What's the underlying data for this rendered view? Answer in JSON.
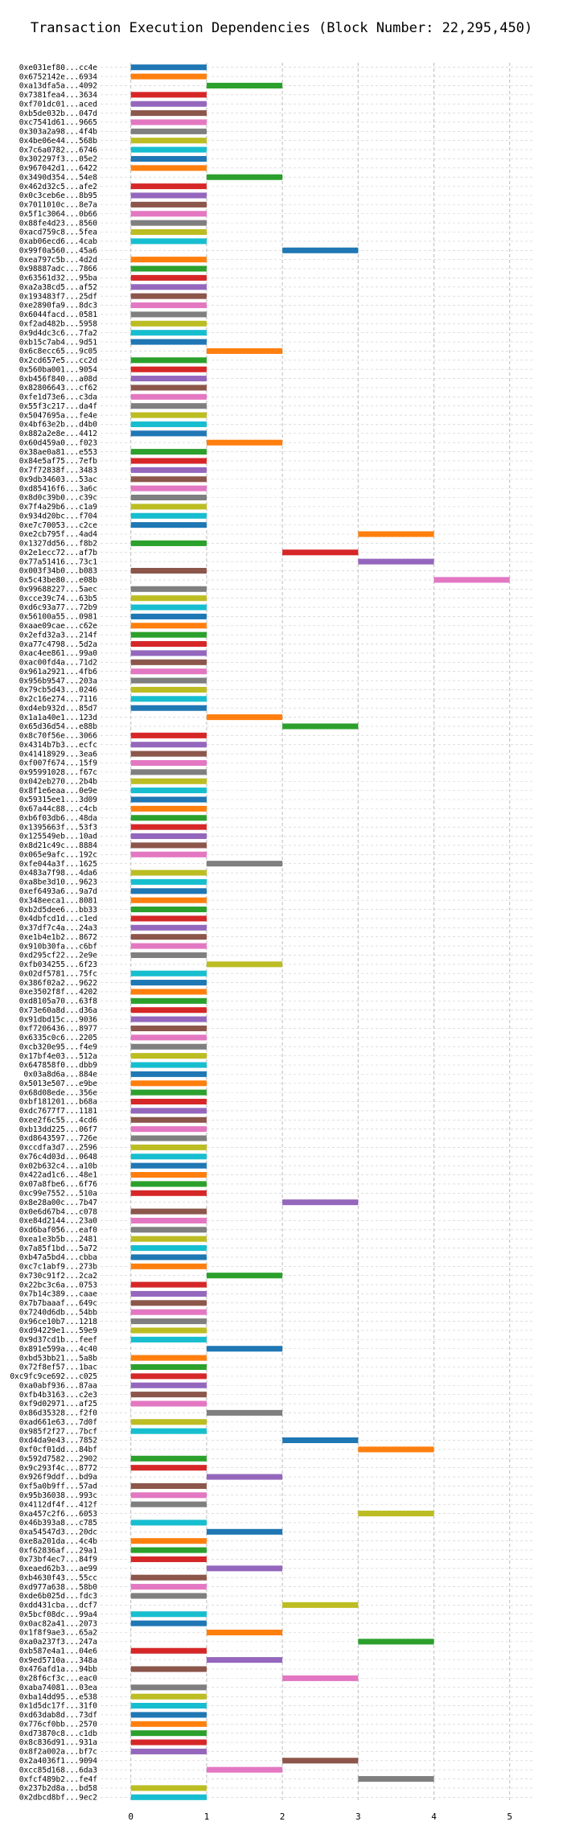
{
  "chart_data": {
    "type": "bar",
    "orientation": "horizontal",
    "title": "Transaction Execution Dependencies (Block Number: 22,295,450)",
    "xlabel": "",
    "ylabel": "",
    "xlim": [
      -0.4,
      5.3
    ],
    "xticks": [
      0,
      1,
      2,
      3,
      4,
      5
    ],
    "grid": {
      "x": true,
      "y": true,
      "style": "dashed"
    },
    "palette": [
      "#1f77b4",
      "#ff7f0e",
      "#2ca02c",
      "#d62728",
      "#9467bd",
      "#8c564b",
      "#e377c2",
      "#7f7f7f",
      "#bcbd22",
      "#17becf"
    ],
    "transactions": [
      {
        "label": "0xe031ef80...cc4e",
        "start": 0
      },
      {
        "label": "0x6752142e...6934",
        "start": 0
      },
      {
        "label": "0xa13dfa5a...4092",
        "start": 1
      },
      {
        "label": "0x7381fea4...3634",
        "start": 0
      },
      {
        "label": "0xf701dc01...aced",
        "start": 0
      },
      {
        "label": "0xb5de032b...047d",
        "start": 0
      },
      {
        "label": "0xc7541d61...9665",
        "start": 0
      },
      {
        "label": "0x303a2a98...4f4b",
        "start": 0
      },
      {
        "label": "0x4be06e44...568b",
        "start": 0
      },
      {
        "label": "0x7c6a0782...6746",
        "start": 0
      },
      {
        "label": "0x302297f3...05e2",
        "start": 0
      },
      {
        "label": "0x967042d1...6422",
        "start": 0
      },
      {
        "label": "0x3490d354...54e8",
        "start": 1
      },
      {
        "label": "0x462d32c5...afe2",
        "start": 0
      },
      {
        "label": "0x0c3ceb6e...8b95",
        "start": 0
      },
      {
        "label": "0x7011010c...8e7a",
        "start": 0
      },
      {
        "label": "0x5f1c3064...0b66",
        "start": 0
      },
      {
        "label": "0x88fe4d23...8560",
        "start": 0
      },
      {
        "label": "0xacd759c8...5fea",
        "start": 0
      },
      {
        "label": "0xab06ecd6...4cab",
        "start": 0
      },
      {
        "label": "0x99f0a560...45a6",
        "start": 2
      },
      {
        "label": "0xea797c5b...4d2d",
        "start": 0
      },
      {
        "label": "0x98887adc...7866",
        "start": 0
      },
      {
        "label": "0x63561d32...95ba",
        "start": 0
      },
      {
        "label": "0xa2a38cd5...af52",
        "start": 0
      },
      {
        "label": "0x193483f7...25df",
        "start": 0
      },
      {
        "label": "0xe2890fa9...8dc3",
        "start": 0
      },
      {
        "label": "0x6044facd...0581",
        "start": 0
      },
      {
        "label": "0xf2ad482b...5958",
        "start": 0
      },
      {
        "label": "0x9d4dc3c6...7fa2",
        "start": 0
      },
      {
        "label": "0xb15c7ab4...9d51",
        "start": 0
      },
      {
        "label": "0x6c8ecc65...9c05",
        "start": 1
      },
      {
        "label": "0x2cd657e5...cc2d",
        "start": 0
      },
      {
        "label": "0x560ba001...9054",
        "start": 0
      },
      {
        "label": "0xb456f840...a08d",
        "start": 0
      },
      {
        "label": "0x82806643...cf62",
        "start": 0
      },
      {
        "label": "0xfe1d73e6...c3da",
        "start": 0
      },
      {
        "label": "0x55f3c217...da4f",
        "start": 0
      },
      {
        "label": "0x5047695a...fe4e",
        "start": 0
      },
      {
        "label": "0x4bf63e2b...d4b0",
        "start": 0
      },
      {
        "label": "0x882a2e8e...4412",
        "start": 0
      },
      {
        "label": "0x60d459a0...f023",
        "start": 1
      },
      {
        "label": "0x38ae0a81...e553",
        "start": 0
      },
      {
        "label": "0x84e5af75...7efb",
        "start": 0
      },
      {
        "label": "0x7f72838f...3483",
        "start": 0
      },
      {
        "label": "0x9db34603...53ac",
        "start": 0
      },
      {
        "label": "0xd85416f6...3a6c",
        "start": 0
      },
      {
        "label": "0x8d0c39b0...c39c",
        "start": 0
      },
      {
        "label": "0x7f4a29b6...c1a9",
        "start": 0
      },
      {
        "label": "0x934d20bc...f704",
        "start": 0
      },
      {
        "label": "0xe7c70053...c2ce",
        "start": 0
      },
      {
        "label": "0xe2cb795f...4ad4",
        "start": 3
      },
      {
        "label": "0x1327dd56...f8b2",
        "start": 0
      },
      {
        "label": "0x2e1ecc72...af7b",
        "start": 2
      },
      {
        "label": "0x77a51416...73c1",
        "start": 3
      },
      {
        "label": "0x003f34b0...b083",
        "start": 0
      },
      {
        "label": "0x5c43be80...e08b",
        "start": 4
      },
      {
        "label": "0x99688227...5aec",
        "start": 0
      },
      {
        "label": "0xcce39c74...63b5",
        "start": 0
      },
      {
        "label": "0xd6c93a77...72b9",
        "start": 0
      },
      {
        "label": "0x56100a55...0981",
        "start": 0
      },
      {
        "label": "0xaae09cae...c62e",
        "start": 0
      },
      {
        "label": "0x2efd32a3...214f",
        "start": 0
      },
      {
        "label": "0xa77c4798...5d2a",
        "start": 0
      },
      {
        "label": "0xac4ee861...99a0",
        "start": 0
      },
      {
        "label": "0xac00fd4a...71d2",
        "start": 0
      },
      {
        "label": "0x961a2921...4fb6",
        "start": 0
      },
      {
        "label": "0x956b9547...203a",
        "start": 0
      },
      {
        "label": "0x79cb5d43...0246",
        "start": 0
      },
      {
        "label": "0x2c16e274...7116",
        "start": 0
      },
      {
        "label": "0xd4eb932d...85d7",
        "start": 0
      },
      {
        "label": "0x1a1a40e1...123d",
        "start": 1
      },
      {
        "label": "0x65d36d54...e88b",
        "start": 2
      },
      {
        "label": "0x8c70f56e...3066",
        "start": 0
      },
      {
        "label": "0x4314b7b3...ecfc",
        "start": 0
      },
      {
        "label": "0x41418929...3ea6",
        "start": 0
      },
      {
        "label": "0xf007f674...15f9",
        "start": 0
      },
      {
        "label": "0x95991028...f67c",
        "start": 0
      },
      {
        "label": "0x042eb270...2b4b",
        "start": 0
      },
      {
        "label": "0x8f1e6eaa...0e9e",
        "start": 0
      },
      {
        "label": "0x59315ee1...3d09",
        "start": 0
      },
      {
        "label": "0x67a44c88...c4cb",
        "start": 0
      },
      {
        "label": "0xb6f03db6...48da",
        "start": 0
      },
      {
        "label": "0x1395663f...53f3",
        "start": 0
      },
      {
        "label": "0x125549eb...10ad",
        "start": 0
      },
      {
        "label": "0x8d21c49c...8884",
        "start": 0
      },
      {
        "label": "0x065e9afc...192c",
        "start": 0
      },
      {
        "label": "0xfe044a3f...1625",
        "start": 1
      },
      {
        "label": "0x483a7f98...4da6",
        "start": 0
      },
      {
        "label": "0xa8be3d10...9623",
        "start": 0
      },
      {
        "label": "0xef6493a6...9a7d",
        "start": 0
      },
      {
        "label": "0x348eeca1...8081",
        "start": 0
      },
      {
        "label": "0xb2d5dee6...bb33",
        "start": 0
      },
      {
        "label": "0x4dbfcd1d...c1ed",
        "start": 0
      },
      {
        "label": "0x37df7c4a...24a3",
        "start": 0
      },
      {
        "label": "0xe1b4e1b2...8672",
        "start": 0
      },
      {
        "label": "0x910b30fa...c6bf",
        "start": 0
      },
      {
        "label": "0xd295cf22...2e9e",
        "start": 0
      },
      {
        "label": "0xfb034255...6f23",
        "start": 1
      },
      {
        "label": "0x02df5781...75fc",
        "start": 0
      },
      {
        "label": "0x386f02a2...9622",
        "start": 0
      },
      {
        "label": "0xe3502f8f...4202",
        "start": 0
      },
      {
        "label": "0xd8105a70...63f8",
        "start": 0
      },
      {
        "label": "0x73e60a8d...d36a",
        "start": 0
      },
      {
        "label": "0x91dbd15c...9036",
        "start": 0
      },
      {
        "label": "0xf7206436...8977",
        "start": 0
      },
      {
        "label": "0x6335c0c6...2205",
        "start": 0
      },
      {
        "label": "0xcb320e95...f4e9",
        "start": 0
      },
      {
        "label": "0x17bf4e03...512a",
        "start": 0
      },
      {
        "label": "0x647858f0...dbb9",
        "start": 0
      },
      {
        "label": "0x03a8d6a...884e",
        "start": 0
      },
      {
        "label": "0x5013e507...e9be",
        "start": 0
      },
      {
        "label": "0x68d08ede...356e",
        "start": 0
      },
      {
        "label": "0xbf181201...b68a",
        "start": 0
      },
      {
        "label": "0xdc7677f7...1181",
        "start": 0
      },
      {
        "label": "0xee2f6c55...4cd6",
        "start": 0
      },
      {
        "label": "0xb13dd225...06f7",
        "start": 0
      },
      {
        "label": "0xd8643597...726e",
        "start": 0
      },
      {
        "label": "0xccdfa3d7...2596",
        "start": 0
      },
      {
        "label": "0x76c4d03d...0648",
        "start": 0
      },
      {
        "label": "0x02b632c4...a10b",
        "start": 0
      },
      {
        "label": "0x422ad1c6...48e1",
        "start": 0
      },
      {
        "label": "0x07a8fbe6...6f76",
        "start": 0
      },
      {
        "label": "0xc99e7552...510a",
        "start": 0
      },
      {
        "label": "0x8e28a00c...7b47",
        "start": 2
      },
      {
        "label": "0x0e6d67b4...c078",
        "start": 0
      },
      {
        "label": "0xe84d2144...23a0",
        "start": 0
      },
      {
        "label": "0xd6baf056...eaf0",
        "start": 0
      },
      {
        "label": "0xea1e3b5b...2481",
        "start": 0
      },
      {
        "label": "0x7a85f1bd...5a72",
        "start": 0
      },
      {
        "label": "0xb47a5bd4...cbba",
        "start": 0
      },
      {
        "label": "0xc7c1abf9...273b",
        "start": 0
      },
      {
        "label": "0x730c91f2...2ca2",
        "start": 1
      },
      {
        "label": "0x22bc3c6a...0753",
        "start": 0
      },
      {
        "label": "0x7b14c389...caae",
        "start": 0
      },
      {
        "label": "0x7b7baaaf...649c",
        "start": 0
      },
      {
        "label": "0x7240d6db...54bb",
        "start": 0
      },
      {
        "label": "0x96ce10b7...1218",
        "start": 0
      },
      {
        "label": "0xd94229e1...59e9",
        "start": 0
      },
      {
        "label": "0x9d37cd1b...feef",
        "start": 0
      },
      {
        "label": "0x891e599a...4c40",
        "start": 1
      },
      {
        "label": "0xbd53bb21...5a8b",
        "start": 0
      },
      {
        "label": "0x72f8ef57...1bac",
        "start": 0
      },
      {
        "label": "0xc9fc9ce692...c025",
        "start": 0
      },
      {
        "label": "0xa0abf936...87aa",
        "start": 0
      },
      {
        "label": "0xfb4b3163...c2e3",
        "start": 0
      },
      {
        "label": "0xf9d02971...af25",
        "start": 0
      },
      {
        "label": "0x86d35328...f2f0",
        "start": 1
      },
      {
        "label": "0xad661e63...7d0f",
        "start": 0
      },
      {
        "label": "0x985f2f27...7bcf",
        "start": 0
      },
      {
        "label": "0xd4da9e43...7852",
        "start": 2
      },
      {
        "label": "0xf0cf01dd...84bf",
        "start": 3
      },
      {
        "label": "0x592d7582...2902",
        "start": 0
      },
      {
        "label": "0x9c293f4c...8772",
        "start": 0
      },
      {
        "label": "0x926f9ddf...bd9a",
        "start": 1
      },
      {
        "label": "0xf5a0b9ff...57ad",
        "start": 0
      },
      {
        "label": "0x95b36038...993c",
        "start": 0
      },
      {
        "label": "0x4112df4f...412f",
        "start": 0
      },
      {
        "label": "0xa457c2f6...6053",
        "start": 3
      },
      {
        "label": "0x46b393a8...c785",
        "start": 0
      },
      {
        "label": "0xa54547d3...20dc",
        "start": 1
      },
      {
        "label": "0xe8a201da...4c4b",
        "start": 0
      },
      {
        "label": "0xf62836af...29a1",
        "start": 0
      },
      {
        "label": "0x73bf4ec7...84f9",
        "start": 0
      },
      {
        "label": "0xeaed62b3...ae99",
        "start": 1
      },
      {
        "label": "0xb4630f43...55cc",
        "start": 0
      },
      {
        "label": "0xd977a638...58b0",
        "start": 0
      },
      {
        "label": "0xde6b025d...fdc3",
        "start": 0
      },
      {
        "label": "0xdd431cba...dcf7",
        "start": 2
      },
      {
        "label": "0x5bcf08dc...99a4",
        "start": 0
      },
      {
        "label": "0x0ac82a41...2073",
        "start": 0
      },
      {
        "label": "0x1f8f9ae3...65a2",
        "start": 1
      },
      {
        "label": "0xa0a237f3...247a",
        "start": 3
      },
      {
        "label": "0xb587e4a1...04e6",
        "start": 0
      },
      {
        "label": "0x9ed5710a...348a",
        "start": 1
      },
      {
        "label": "0x476afd1a...94bb",
        "start": 0
      },
      {
        "label": "0x28f6cf3c...eac0",
        "start": 2
      },
      {
        "label": "0xaba74081...03ea",
        "start": 0
      },
      {
        "label": "0xba14dd95...e538",
        "start": 0
      },
      {
        "label": "0x1d5dc17f...31f0",
        "start": 0
      },
      {
        "label": "0xd63dab8d...73df",
        "start": 0
      },
      {
        "label": "0x776cf0bb...2570",
        "start": 0
      },
      {
        "label": "0xd73870c8...c1db",
        "start": 0
      },
      {
        "label": "0x8c836d91...931a",
        "start": 0
      },
      {
        "label": "0x8f2a002a...bf7c",
        "start": 0
      },
      {
        "label": "0x2a4036f1...9094",
        "start": 2
      },
      {
        "label": "0xcc85d168...6da3",
        "start": 1
      },
      {
        "label": "0xfcf489b2...fe4f",
        "start": 3
      },
      {
        "label": "0x237b2d8a...bd58",
        "start": 0
      },
      {
        "label": "0x2dbcd8bf...9ec2",
        "start": 0
      }
    ]
  }
}
